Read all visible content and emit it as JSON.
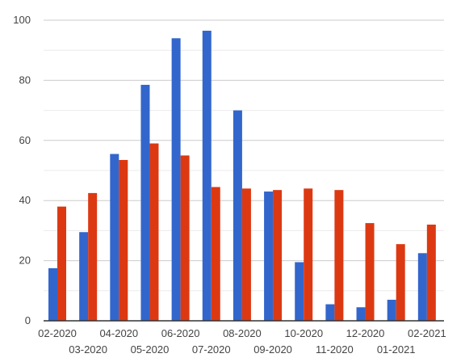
{
  "chart_data": {
    "type": "bar",
    "title": "",
    "xlabel": "",
    "ylabel": "",
    "ylim": [
      0,
      100
    ],
    "yticks": [
      0,
      20,
      40,
      60,
      80,
      100
    ],
    "grid": true,
    "legend": "none",
    "categories": [
      "02-2020",
      "03-2020",
      "04-2020",
      "05-2020",
      "06-2020",
      "07-2020",
      "08-2020",
      "09-2020",
      "10-2020",
      "11-2020",
      "12-2020",
      "01-2021",
      "02-2021"
    ],
    "series": [
      {
        "color": "#3366cc",
        "values": [
          17.5,
          29.5,
          55.5,
          78.5,
          94,
          96.5,
          70,
          43,
          19.5,
          5.5,
          4.5,
          7,
          22.5
        ]
      },
      {
        "color": "#dc3912",
        "values": [
          38,
          42.5,
          53.5,
          59,
          55,
          44.5,
          44,
          43.5,
          44,
          43.5,
          32.5,
          25.5,
          32
        ]
      }
    ]
  }
}
